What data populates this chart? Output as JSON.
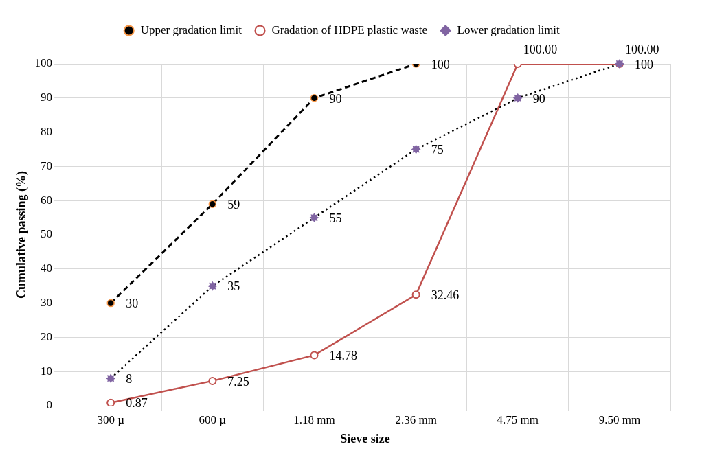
{
  "chart_data": {
    "type": "line",
    "xlabel": "Sieve size",
    "ylabel": "Cumulative passing (%)",
    "categories": [
      "300 µ",
      "600 µ",
      "1.18 mm",
      "2.36 mm",
      "4.75 mm",
      "9.50 mm"
    ],
    "series": [
      {
        "name": "Upper gradation limit",
        "color": "#000000",
        "values": [
          30,
          59,
          90,
          100,
          null,
          null
        ],
        "value_labels": [
          "30",
          "59",
          "90",
          "100",
          null,
          null
        ],
        "marker": "circle",
        "line_style": "dashed"
      },
      {
        "name": "Gradation of HDPE plastic waste",
        "color": "#c0504d",
        "values": [
          0.87,
          7.25,
          14.78,
          32.46,
          100.0,
          100.0
        ],
        "value_labels": [
          "0.87",
          "7.25",
          "14.78",
          "32.46",
          "100.00",
          "100.00"
        ],
        "marker": "circle",
        "line_style": "solid"
      },
      {
        "name": "Lower gradation limit",
        "color": "#8064a2",
        "values": [
          8,
          35,
          55,
          75,
          90,
          100
        ],
        "value_labels": [
          "8",
          "35",
          "55",
          "75",
          "90",
          "100"
        ],
        "marker": "star",
        "line_style": "dotted"
      }
    ],
    "ylim": [
      0,
      100
    ],
    "yticks": [
      0,
      10,
      20,
      30,
      40,
      50,
      60,
      70,
      80,
      90,
      100
    ],
    "grid": true,
    "legend": "top"
  }
}
